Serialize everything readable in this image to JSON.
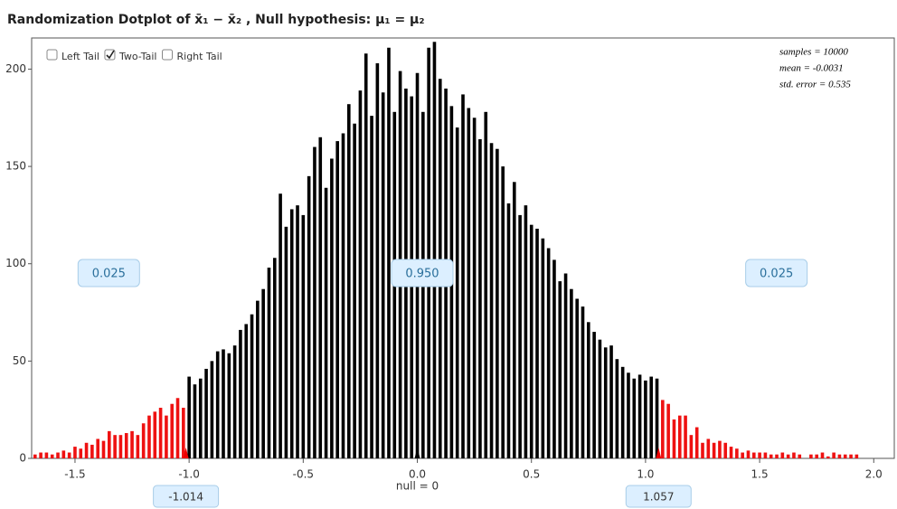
{
  "chart_data": {
    "type": "dotplot",
    "title": "Randomization Dotplot of x̄₁ − x̄₂ ,   Null hypothesis: μ₁ = μ₂",
    "controls": [
      {
        "label": "Left Tail",
        "checked": false
      },
      {
        "label": "Two-Tail",
        "checked": true
      },
      {
        "label": "Right Tail",
        "checked": false
      }
    ],
    "stats": [
      "samples = 10000",
      "mean = -0.0031",
      "std. error = 0.535"
    ],
    "proportions": [
      "0.025",
      "0.950",
      "0.025"
    ],
    "left_cutoff": -1.014,
    "right_cutoff": 1.057,
    "null_label": "null = 0",
    "null_value": 0,
    "color": "#000000",
    "tail_color": "#ee1111",
    "x": [
      -1.675,
      -1.65,
      -1.625,
      -1.6,
      -1.575,
      -1.55,
      -1.525,
      -1.5,
      -1.475,
      -1.45,
      -1.425,
      -1.4,
      -1.375,
      -1.35,
      -1.325,
      -1.3,
      -1.275,
      -1.25,
      -1.225,
      -1.2,
      -1.175,
      -1.15,
      -1.125,
      -1.1,
      -1.075,
      -1.05,
      -1.025,
      -1.0,
      -0.975,
      -0.95,
      -0.925,
      -0.9,
      -0.875,
      -0.85,
      -0.825,
      -0.8,
      -0.775,
      -0.75,
      -0.725,
      -0.7,
      -0.675,
      -0.65,
      -0.625,
      -0.6,
      -0.575,
      -0.55,
      -0.525,
      -0.5,
      -0.475,
      -0.45,
      -0.425,
      -0.4,
      -0.375,
      -0.35,
      -0.325,
      -0.3,
      -0.275,
      -0.25,
      -0.225,
      -0.2,
      -0.175,
      -0.15,
      -0.125,
      -0.1,
      -0.075,
      -0.05,
      -0.025,
      0,
      0.025,
      0.05,
      0.075,
      0.1,
      0.125,
      0.15,
      0.175,
      0.2,
      0.225,
      0.25,
      0.275,
      0.3,
      0.325,
      0.35,
      0.375,
      0.4,
      0.425,
      0.45,
      0.475,
      0.5,
      0.525,
      0.55,
      0.575,
      0.6,
      0.625,
      0.65,
      0.675,
      0.7,
      0.725,
      0.75,
      0.775,
      0.8,
      0.825,
      0.85,
      0.875,
      0.9,
      0.925,
      0.95,
      0.975,
      1.0,
      1.025,
      1.05,
      1.075,
      1.1,
      1.125,
      1.15,
      1.175,
      1.2,
      1.225,
      1.25,
      1.275,
      1.3,
      1.325,
      1.35,
      1.375,
      1.4,
      1.425,
      1.45,
      1.475,
      1.5,
      1.525,
      1.55,
      1.575,
      1.6,
      1.625,
      1.65,
      1.675,
      1.7,
      1.725,
      1.75,
      1.775,
      1.8,
      1.825,
      1.85,
      1.875,
      1.9,
      1.925
    ],
    "values": [
      2,
      3,
      3,
      2,
      3,
      4,
      3,
      6,
      5,
      8,
      7,
      10,
      9,
      14,
      12,
      12,
      13,
      14,
      12,
      18,
      22,
      24,
      26,
      22,
      28,
      31,
      26,
      42,
      38,
      41,
      46,
      50,
      55,
      56,
      54,
      58,
      66,
      69,
      74,
      81,
      87,
      98,
      103,
      136,
      119,
      128,
      130,
      125,
      145,
      160,
      165,
      139,
      154,
      163,
      167,
      182,
      172,
      189,
      208,
      176,
      203,
      188,
      211,
      178,
      199,
      190,
      186,
      198,
      178,
      211,
      214,
      195,
      190,
      181,
      170,
      187,
      180,
      175,
      164,
      178,
      162,
      159,
      150,
      131,
      142,
      125,
      130,
      120,
      118,
      113,
      108,
      102,
      91,
      95,
      87,
      82,
      78,
      70,
      65,
      61,
      57,
      58,
      51,
      47,
      44,
      41,
      43,
      40,
      42,
      41,
      30,
      28,
      20,
      22,
      22,
      12,
      16,
      8,
      10,
      8,
      9,
      8,
      6,
      5,
      3,
      4,
      3,
      3,
      3,
      2,
      2,
      3,
      2,
      3,
      2,
      0,
      2,
      2,
      3,
      1,
      3,
      2,
      2,
      2,
      2
    ],
    "xlim": [
      -1.69,
      2.09
    ],
    "ylim": [
      0,
      216
    ],
    "xticks": [
      -1.5,
      {
        "value": -1.0,
        "label": "-1.0"
      },
      -0.5,
      {
        "value": 0,
        "label": "0.0"
      },
      0.5,
      {
        "value": 1.0,
        "label": "1.0"
      },
      1.5,
      {
        "value": 2.0,
        "label": "2.0"
      }
    ],
    "yticks": [
      0,
      50,
      100,
      150,
      200
    ]
  }
}
